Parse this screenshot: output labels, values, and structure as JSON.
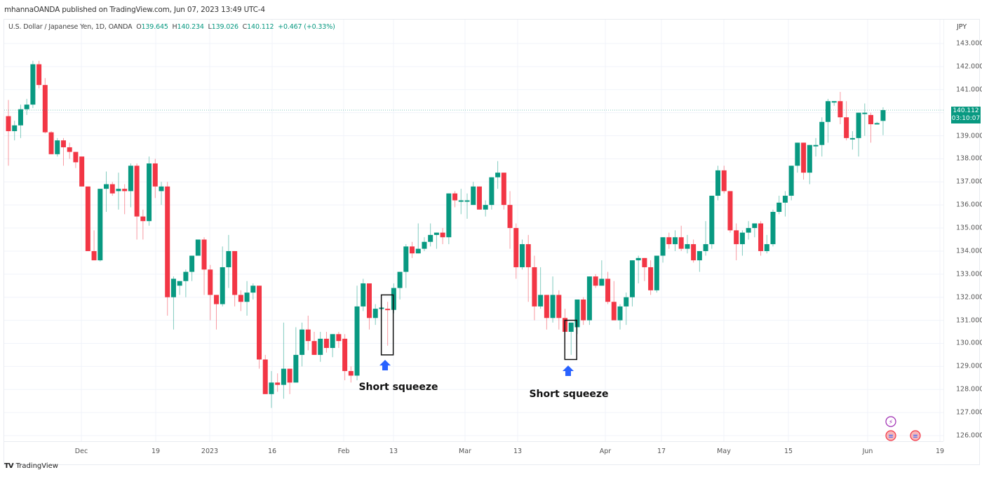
{
  "header": {
    "published": "mhannaOANDA published on TradingView.com, Jun 07, 2023 13:49 UTC-4"
  },
  "legend": {
    "symbol": "U.S. Dollar / Japanese Yen, 1D, OANDA",
    "o_label": "O",
    "o": "139.645",
    "h_label": "H",
    "h": "140.234",
    "l_label": "L",
    "l": "139.026",
    "c_label": "C",
    "c": "140.112",
    "change": "+0.467 (+0.33%)"
  },
  "price_axis": {
    "currency": "JPY",
    "ticks": [
      "143.000",
      "142.000",
      "141.000",
      "139.000",
      "138.000",
      "137.000",
      "136.000",
      "135.000",
      "134.000",
      "133.000",
      "132.000",
      "131.000",
      "130.000",
      "129.000",
      "128.000",
      "127.000",
      "126.000"
    ],
    "last_price": "140.112",
    "countdown": "03:10:07"
  },
  "time_axis": {
    "ticks": [
      "Dec",
      "19",
      "2023",
      "16",
      "Feb",
      "13",
      "Mar",
      "13",
      "Apr",
      "17",
      "May",
      "15",
      "Jun",
      "19"
    ]
  },
  "annotations": [
    {
      "text": "Short squeeze"
    },
    {
      "text": "Short squeeze"
    }
  ],
  "footer": {
    "brand": "TradingView",
    "mark": "TV"
  },
  "colors": {
    "up": "#089981",
    "down": "#f23645",
    "arrow": "#2962ff",
    "grid": "#f0f3fa"
  },
  "chart_data": {
    "type": "candlestick",
    "title": "U.S. Dollar / Japanese Yen, 1D, OANDA",
    "xlabel": "",
    "ylabel": "JPY",
    "ylim": [
      125.8,
      144.0
    ],
    "grid": true,
    "x_ticks": [
      "Dec",
      "19",
      "2023",
      "16",
      "Feb",
      "13",
      "Mar",
      "13",
      "Apr",
      "17",
      "May",
      "15",
      "Jun",
      "19"
    ],
    "y_ticks": [
      126,
      127,
      128,
      129,
      130,
      131,
      132,
      133,
      134,
      135,
      136,
      137,
      138,
      139,
      140,
      141,
      142,
      143
    ],
    "last": {
      "open": 139.645,
      "high": 140.234,
      "low": 139.026,
      "close": 140.112,
      "change": 0.467,
      "change_pct": 0.33
    },
    "candles": [
      [
        139.85,
        140.55,
        137.7,
        139.2
      ],
      [
        139.2,
        139.65,
        138.8,
        139.45
      ],
      [
        139.45,
        140.35,
        138.9,
        140.15
      ],
      [
        140.15,
        140.6,
        139.9,
        140.35
      ],
      [
        140.35,
        142.25,
        140.2,
        142.1
      ],
      [
        142.1,
        142.25,
        141.05,
        141.2
      ],
      [
        141.2,
        141.5,
        139.1,
        139.15
      ],
      [
        139.15,
        139.2,
        138.2,
        138.2
      ],
      [
        138.2,
        138.9,
        138.1,
        138.8
      ],
      [
        138.8,
        138.9,
        137.7,
        138.5
      ],
      [
        138.5,
        138.7,
        138.0,
        138.3
      ],
      [
        138.3,
        138.2,
        137.6,
        137.85
      ],
      [
        138.1,
        138.1,
        137.8,
        136.8
      ],
      [
        136.8,
        136.8,
        134.6,
        134.0
      ],
      [
        134.0,
        134.9,
        133.6,
        133.6
      ],
      [
        133.6,
        136.3,
        133.55,
        136.7
      ],
      [
        136.7,
        137.45,
        135.7,
        136.9
      ],
      [
        136.9,
        137.0,
        136.4,
        136.5
      ],
      [
        136.6,
        137.4,
        135.8,
        136.7
      ],
      [
        136.7,
        136.9,
        135.6,
        136.6
      ],
      [
        136.6,
        137.8,
        135.9,
        137.7
      ],
      [
        137.7,
        137.8,
        134.5,
        135.5
      ],
      [
        135.5,
        135.8,
        134.5,
        135.3
      ],
      [
        135.3,
        138.1,
        135.1,
        137.8
      ],
      [
        137.8,
        138.0,
        136.3,
        136.8
      ],
      [
        136.6,
        137.0,
        136.0,
        136.8
      ],
      [
        136.8,
        137.0,
        131.2,
        132.0
      ],
      [
        132.0,
        132.9,
        130.6,
        132.8
      ],
      [
        132.5,
        132.7,
        132.1,
        132.7
      ],
      [
        132.7,
        133.2,
        132.0,
        133.1
      ],
      [
        133.1,
        133.8,
        132.7,
        133.8
      ],
      [
        133.8,
        134.5,
        134.0,
        134.5
      ],
      [
        134.5,
        134.6,
        132.1,
        133.2
      ],
      [
        133.2,
        133.4,
        131.0,
        132.1
      ],
      [
        132.1,
        131.8,
        130.6,
        131.7
      ],
      [
        131.7,
        134.2,
        131.6,
        133.3
      ],
      [
        133.3,
        134.7,
        132.4,
        134.0
      ],
      [
        134.0,
        134.0,
        131.6,
        132.1
      ],
      [
        132.1,
        132.3,
        131.4,
        131.8
      ],
      [
        131.8,
        132.7,
        131.2,
        132.2
      ],
      [
        132.2,
        132.6,
        131.9,
        132.5
      ],
      [
        132.5,
        132.5,
        128.9,
        129.3
      ],
      [
        129.3,
        129.5,
        128.2,
        127.8
      ],
      [
        127.8,
        128.8,
        127.2,
        128.3
      ],
      [
        128.3,
        128.7,
        127.9,
        128.2
      ],
      [
        128.2,
        130.9,
        127.6,
        128.9
      ],
      [
        128.9,
        128.9,
        127.8,
        128.3
      ],
      [
        128.3,
        130.7,
        128.4,
        129.5
      ],
      [
        129.5,
        130.9,
        129.0,
        130.6
      ],
      [
        130.6,
        131.2,
        129.7,
        130.1
      ],
      [
        130.1,
        130.5,
        129.5,
        129.5
      ],
      [
        129.5,
        130.5,
        129.2,
        130.2
      ],
      [
        130.2,
        130.5,
        129.6,
        129.8
      ],
      [
        129.8,
        130.4,
        129.4,
        130.4
      ],
      [
        130.4,
        130.5,
        129.8,
        130.1
      ],
      [
        130.2,
        130.4,
        128.4,
        128.8
      ],
      [
        128.8,
        129.0,
        128.3,
        128.6
      ],
      [
        128.6,
        132.5,
        128.4,
        131.6
      ],
      [
        131.6,
        132.8,
        131.4,
        132.6
      ],
      [
        132.6,
        132.6,
        130.6,
        131.1
      ],
      [
        131.1,
        131.7,
        130.8,
        131.5
      ],
      [
        131.5,
        131.6,
        131.4,
        131.55
      ],
      [
        131.5,
        131.8,
        129.9,
        131.45
      ],
      [
        131.45,
        132.6,
        131.3,
        132.4
      ],
      [
        132.4,
        133.0,
        131.9,
        133.1
      ],
      [
        133.1,
        134.3,
        132.4,
        134.2
      ],
      [
        134.2,
        134.4,
        133.7,
        133.9
      ],
      [
        133.9,
        135.2,
        133.9,
        134.1
      ],
      [
        134.1,
        134.6,
        134.0,
        134.4
      ],
      [
        134.4,
        135.2,
        134.2,
        134.7
      ],
      [
        134.7,
        134.8,
        134.1,
        134.8
      ],
      [
        134.8,
        135.0,
        134.3,
        134.6
      ],
      [
        134.6,
        136.5,
        134.3,
        136.5
      ],
      [
        136.5,
        136.6,
        135.9,
        136.2
      ],
      [
        136.2,
        136.7,
        135.6,
        136.2
      ],
      [
        136.2,
        136.5,
        135.4,
        136.2
      ],
      [
        136.0,
        137.0,
        136.0,
        136.8
      ],
      [
        136.8,
        136.8,
        135.8,
        135.8
      ],
      [
        135.8,
        136.2,
        135.5,
        136.0
      ],
      [
        136.0,
        137.1,
        135.8,
        137.2
      ],
      [
        137.2,
        137.9,
        136.7,
        137.4
      ],
      [
        137.4,
        137.3,
        135.8,
        136.0
      ],
      [
        136.0,
        136.6,
        134.1,
        135.0
      ],
      [
        135.0,
        135.2,
        132.8,
        133.3
      ],
      [
        133.3,
        134.5,
        133.2,
        134.3
      ],
      [
        134.3,
        134.7,
        131.8,
        133.3
      ],
      [
        133.3,
        133.8,
        131.0,
        131.6
      ],
      [
        131.6,
        133.3,
        131.5,
        132.1
      ],
      [
        132.1,
        131.9,
        130.6,
        131.1
      ],
      [
        131.1,
        132.9,
        130.9,
        132.1
      ],
      [
        132.1,
        132.3,
        130.6,
        131.1
      ],
      [
        131.1,
        131.5,
        130.0,
        130.5
      ],
      [
        130.5,
        130.8,
        129.5,
        130.9
      ],
      [
        130.7,
        131.9,
        130.4,
        131.9
      ],
      [
        131.9,
        132.0,
        130.8,
        131.0
      ],
      [
        131.0,
        132.8,
        130.8,
        132.9
      ],
      [
        132.9,
        133.0,
        132.4,
        132.5
      ],
      [
        132.5,
        133.6,
        132.5,
        132.8
      ],
      [
        132.8,
        133.1,
        131.7,
        131.8
      ],
      [
        131.8,
        132.7,
        131.4,
        131.0
      ],
      [
        131.0,
        131.7,
        130.6,
        131.6
      ],
      [
        131.6,
        132.2,
        130.8,
        132.0
      ],
      [
        132.0,
        132.4,
        131.6,
        133.6
      ],
      [
        133.6,
        133.8,
        132.6,
        133.7
      ],
      [
        133.7,
        133.7,
        132.7,
        133.3
      ],
      [
        133.3,
        133.6,
        132.1,
        132.3
      ],
      [
        132.3,
        133.5,
        132.2,
        133.8
      ],
      [
        133.8,
        134.0,
        133.5,
        134.6
      ],
      [
        134.6,
        134.8,
        134.1,
        134.3
      ],
      [
        134.3,
        134.9,
        134.0,
        134.6
      ],
      [
        134.6,
        135.1,
        134.0,
        134.1
      ],
      [
        134.1,
        134.7,
        133.9,
        134.3
      ],
      [
        134.3,
        134.5,
        133.5,
        133.6
      ],
      [
        133.6,
        134.0,
        133.1,
        134.0
      ],
      [
        134.0,
        135.3,
        133.8,
        134.3
      ],
      [
        134.3,
        136.4,
        134.1,
        136.4
      ],
      [
        136.4,
        137.7,
        136.2,
        137.5
      ],
      [
        137.5,
        137.7,
        136.5,
        136.6
      ],
      [
        136.6,
        136.6,
        134.8,
        134.9
      ],
      [
        134.9,
        135.2,
        133.6,
        134.3
      ],
      [
        134.3,
        134.9,
        133.8,
        134.8
      ],
      [
        134.8,
        135.3,
        134.5,
        135.0
      ],
      [
        135.0,
        135.1,
        134.6,
        135.2
      ],
      [
        135.2,
        135.3,
        133.8,
        134.0
      ],
      [
        134.0,
        134.7,
        133.9,
        134.3
      ],
      [
        134.3,
        135.8,
        134.2,
        135.7
      ],
      [
        135.7,
        136.4,
        135.6,
        136.1
      ],
      [
        136.1,
        136.6,
        135.5,
        136.4
      ],
      [
        136.4,
        137.7,
        136.2,
        137.7
      ],
      [
        137.7,
        138.7,
        137.4,
        138.7
      ],
      [
        138.7,
        138.7,
        137.1,
        137.4
      ],
      [
        137.4,
        138.6,
        136.9,
        138.6
      ],
      [
        138.6,
        138.9,
        138.1,
        138.6
      ],
      [
        138.6,
        139.8,
        138.1,
        139.6
      ],
      [
        139.6,
        140.6,
        138.7,
        140.5
      ],
      [
        140.5,
        140.5,
        140.3,
        140.5
      ],
      [
        140.5,
        140.9,
        139.5,
        139.8
      ],
      [
        139.8,
        140.5,
        138.8,
        138.9
      ],
      [
        138.9,
        139.2,
        138.4,
        138.9
      ],
      [
        138.9,
        139.8,
        138.1,
        140.0
      ],
      [
        140.0,
        140.4,
        139.0,
        140.0
      ],
      [
        139.9,
        140.0,
        138.7,
        139.5
      ],
      [
        139.5,
        139.6,
        139.5,
        139.55
      ],
      [
        139.645,
        140.234,
        139.026,
        140.112
      ]
    ],
    "annotations": [
      {
        "type": "box",
        "label": "Short squeeze",
        "candle_index": 62,
        "price_top": 132.1,
        "price_bottom": 129.5
      },
      {
        "type": "box",
        "label": "Short squeeze",
        "candle_index": 92,
        "price_top": 131.0,
        "price_bottom": 129.3
      }
    ]
  }
}
